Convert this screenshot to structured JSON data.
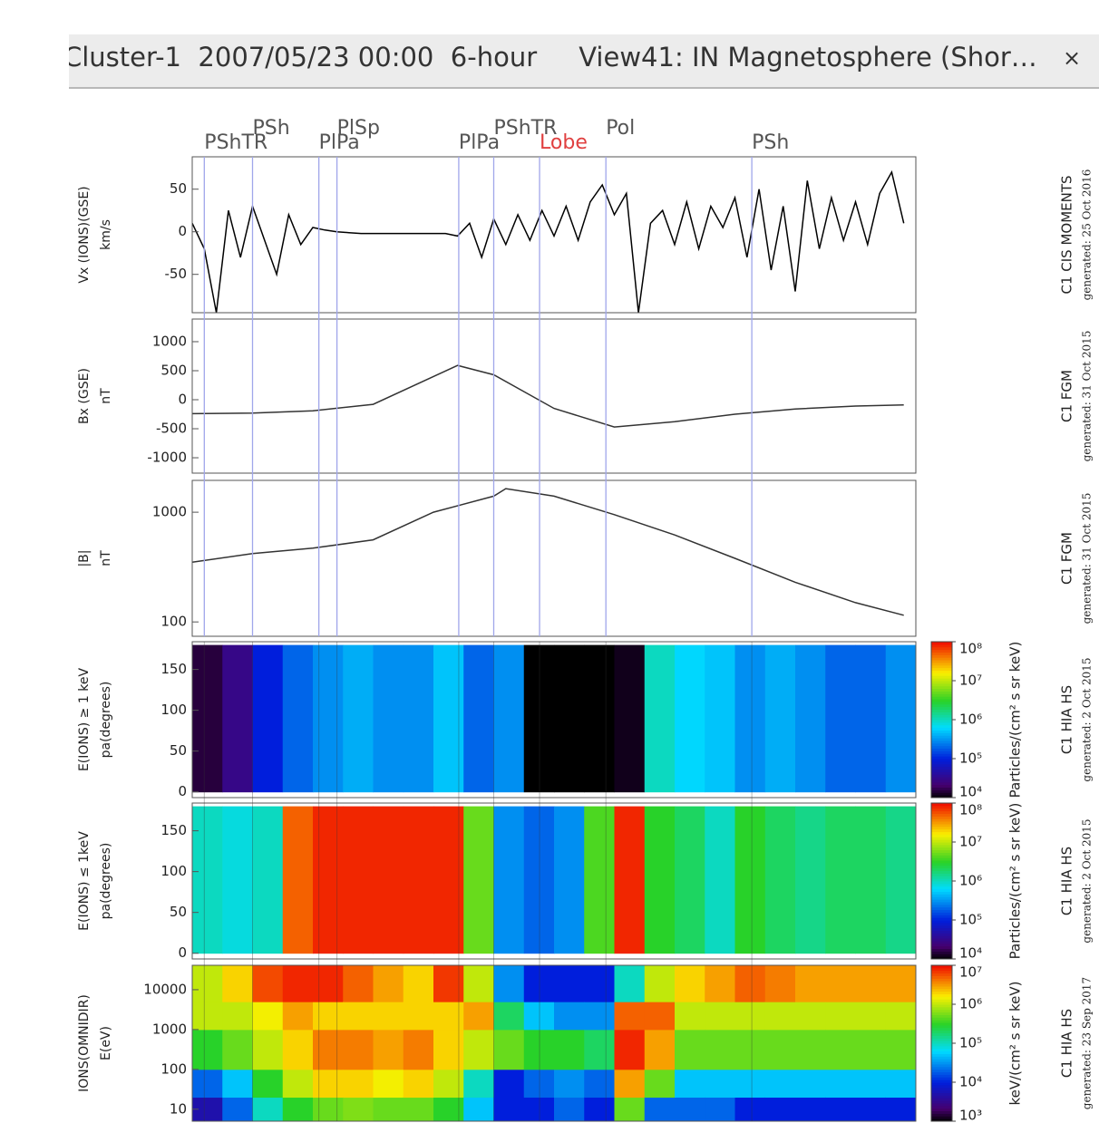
{
  "window": {
    "title": "Cluster-1  2007/05/23 00:00  6-hour     View41: IN Magnetosphere (Shor…",
    "close": "×"
  },
  "chart_data": [
    {
      "type": "line",
      "ylabel": [
        "Vx (IONS)(GSE)",
        "km/s"
      ],
      "source": "C1 CIS MOMENTS",
      "generated": "generated: 25 Oct 2016",
      "xlim": [
        0,
        6
      ],
      "ylim": [
        -95,
        88
      ],
      "yticks": [
        50,
        0,
        -50
      ],
      "log": false,
      "color": "#000000",
      "events": [
        {
          "label": "PShTR",
          "x": 0.1,
          "color": "#555555"
        },
        {
          "label": "PSh",
          "x": 0.5,
          "color": "#555555"
        },
        {
          "label": "PlPa",
          "x": 1.05,
          "color": "#555555"
        },
        {
          "label": "PlSp",
          "x": 1.2,
          "color": "#555555"
        },
        {
          "label": "PlPa",
          "x": 2.21,
          "color": "#555555"
        },
        {
          "label": "PShTR",
          "x": 2.5,
          "color": "#555555"
        },
        {
          "label": "Lobe",
          "x": 2.88,
          "color": "#e04040"
        },
        {
          "label": "Pol",
          "x": 3.43,
          "color": "#555555"
        },
        {
          "label": "PSh",
          "x": 4.64,
          "color": "#555555"
        }
      ],
      "event_line_color": "#a0a6ea",
      "x": [
        0,
        0.1,
        0.2,
        0.3,
        0.4,
        0.5,
        0.6,
        0.7,
        0.8,
        0.9,
        1.0,
        1.1,
        1.2,
        1.3,
        1.4,
        1.5,
        1.6,
        1.7,
        1.8,
        1.9,
        2.0,
        2.1,
        2.2,
        2.3,
        2.4,
        2.5,
        2.6,
        2.7,
        2.8,
        2.9,
        3.0,
        3.1,
        3.2,
        3.3,
        3.4,
        3.5,
        3.6,
        3.7,
        3.8,
        3.9,
        4.0,
        4.1,
        4.2,
        4.3,
        4.4,
        4.5,
        4.6,
        4.7,
        4.8,
        4.9,
        5.0,
        5.1,
        5.2,
        5.3,
        5.4,
        5.5,
        5.6,
        5.7,
        5.8,
        5.9
      ],
      "values": [
        10,
        -20,
        -95,
        25,
        -30,
        30,
        -10,
        -50,
        20,
        -15,
        5,
        2,
        0,
        -1,
        -2,
        -2,
        -2,
        -2,
        -2,
        -2,
        -2,
        -2,
        -5,
        10,
        -30,
        15,
        -15,
        20,
        -10,
        25,
        -5,
        30,
        -10,
        35,
        55,
        20,
        45,
        -95,
        10,
        25,
        -15,
        35,
        -20,
        30,
        5,
        40,
        -30,
        50,
        -45,
        30,
        -70,
        60,
        -20,
        40,
        -10,
        35,
        -15,
        45,
        70,
        10
      ]
    },
    {
      "type": "line",
      "ylabel": [
        "Bx (GSE)",
        "nT"
      ],
      "source": "C1 FGM",
      "generated": "generated: 31 Oct 2015",
      "xlim": [
        0,
        6
      ],
      "ylim": [
        -1265,
        1390
      ],
      "yticks": [
        1000,
        500,
        0,
        -500,
        -1000
      ],
      "log": false,
      "color": "#333333",
      "x": [
        0,
        0.5,
        1.0,
        1.5,
        2.0,
        2.2,
        2.5,
        3.0,
        3.5,
        4.0,
        4.5,
        5.0,
        5.5,
        5.9
      ],
      "values": [
        -240,
        -230,
        -190,
        -80,
        400,
        590,
        430,
        -150,
        -470,
        -380,
        -250,
        -160,
        -110,
        -90
      ]
    },
    {
      "type": "line",
      "ylabel": [
        "|B|",
        "nT"
      ],
      "source": "C1 FGM",
      "generated": "generated: 31 Oct 2015",
      "xlim": [
        0,
        6
      ],
      "ylim": [
        74,
        1950
      ],
      "yticks": [
        1000,
        100
      ],
      "log": true,
      "color": "#333333",
      "x": [
        0,
        0.5,
        1.0,
        1.5,
        2.0,
        2.5,
        2.6,
        3.0,
        3.5,
        4.0,
        4.5,
        5.0,
        5.5,
        5.9
      ],
      "values": [
        350,
        420,
        470,
        560,
        1000,
        1400,
        1640,
        1400,
        950,
        620,
        380,
        230,
        150,
        115
      ]
    },
    {
      "type": "spectrogram",
      "ylabel": [
        "E(IONS) ≥ 1 keV",
        "pa(degrees)"
      ],
      "source": "C1 HIA HS",
      "generated": "generated: 2 Oct 2015",
      "xlim": [
        0,
        6
      ],
      "ylim": [
        -7,
        184
      ],
      "yticks": [
        150,
        100,
        50,
        0
      ],
      "log": false,
      "clim": [
        10000,
        100000000
      ],
      "cticks": [
        {
          "value": 100000000,
          "label": "10⁸"
        },
        {
          "value": 10000000,
          "label": "10⁷"
        },
        {
          "value": 1000000,
          "label": "10⁶"
        },
        {
          "value": 100000,
          "label": "10⁵"
        },
        {
          "value": 10000,
          "label": "10⁴"
        }
      ],
      "colorbar_label": "Particles/(cm² s sr keV)",
      "xbins": [
        0,
        0.25,
        0.5,
        0.75,
        1.0,
        1.25,
        1.5,
        1.75,
        2.0,
        2.25,
        2.5,
        2.75,
        3.0,
        3.25,
        3.5,
        3.75,
        4.0,
        4.25,
        4.5,
        4.75,
        5.0,
        5.25,
        5.5,
        5.75,
        6.0
      ],
      "ybins": [
        0,
        180
      ],
      "values": [
        15000,
        30000,
        100000,
        200000,
        300000,
        400000,
        300000,
        300000,
        500000,
        200000,
        300000,
        10000,
        10000,
        10000,
        12000,
        1000000,
        600000,
        500000,
        300000,
        400000,
        300000,
        200000,
        200000,
        300000
      ]
    },
    {
      "type": "spectrogram",
      "ylabel": [
        "E(IONS) ≤ 1keV",
        "pa(degrees)"
      ],
      "source": "C1 HIA HS",
      "generated": "generated: 2 Oct 2015",
      "xlim": [
        0,
        6
      ],
      "ylim": [
        -7,
        184
      ],
      "yticks": [
        150,
        100,
        50,
        0
      ],
      "log": false,
      "clim": [
        10000,
        100000000
      ],
      "cticks": [
        {
          "value": 100000000,
          "label": "10⁸"
        },
        {
          "value": 10000000,
          "label": "10⁷"
        },
        {
          "value": 1000000,
          "label": "10⁶"
        },
        {
          "value": 100000,
          "label": "10⁵"
        },
        {
          "value": 10000,
          "label": "10⁴"
        }
      ],
      "colorbar_label": "Particles/(cm² s sr keV)",
      "xbins": [
        0,
        0.25,
        0.5,
        0.75,
        1.0,
        1.25,
        1.5,
        1.75,
        2.0,
        2.25,
        2.5,
        2.75,
        3.0,
        3.25,
        3.5,
        3.75,
        4.0,
        4.25,
        4.5,
        4.75,
        5.0,
        5.25,
        5.5,
        5.75,
        6.0
      ],
      "ybins": [
        0,
        180
      ],
      "values": [
        1000000,
        800000,
        1000000,
        50000000,
        80000000,
        80000000,
        80000000,
        80000000,
        80000000,
        5000000,
        300000,
        200000,
        300000,
        4000000,
        80000000,
        3000000,
        2000000,
        1000000,
        3000000,
        2000000,
        1500000,
        2000000,
        2000000,
        1500000
      ]
    },
    {
      "type": "spectrogram",
      "ylabel": [
        "IONS(OMNIDIR)",
        "E(eV)"
      ],
      "source": "C1 HIA HS",
      "generated": "generated: 23 Sep 2017",
      "xlim": [
        0,
        6
      ],
      "ylim": [
        5,
        41000
      ],
      "yticks": [
        10000,
        1000,
        100,
        10
      ],
      "log": true,
      "clim": [
        1000,
        10000000
      ],
      "cticks": [
        {
          "value": 10000000,
          "label": "10⁷"
        },
        {
          "value": 1000000,
          "label": "10⁶"
        },
        {
          "value": 100000,
          "label": "10⁵"
        },
        {
          "value": 10000,
          "label": "10⁴"
        },
        {
          "value": 1000,
          "label": "10³"
        }
      ],
      "colorbar_label": "keV/(cm² s sr keV)",
      "xbins": [
        0,
        0.25,
        0.5,
        0.75,
        1.0,
        1.25,
        1.5,
        1.75,
        2.0,
        2.25,
        2.5,
        2.75,
        3.0,
        3.25,
        3.5,
        3.75,
        4.0,
        4.25,
        4.5,
        4.75,
        5.0,
        5.25,
        5.5,
        5.75,
        6.0
      ],
      "ybins": [
        5,
        20,
        100,
        1000,
        5000,
        41000
      ],
      "values": [
        [
          5000,
          20000,
          300000,
          1000000,
          1000000
        ],
        [
          20000,
          50000,
          500000,
          1000000,
          2000000
        ],
        [
          100000,
          300000,
          1000000,
          1500000,
          6000000
        ],
        [
          300000,
          1000000,
          2000000,
          3000000,
          8000000
        ],
        [
          500000,
          2000000,
          4000000,
          2000000,
          8000000
        ],
        [
          600000,
          2000000,
          4000000,
          2000000,
          5000000
        ],
        [
          500000,
          1500000,
          3000000,
          2000000,
          3000000
        ],
        [
          500000,
          2000000,
          4000000,
          2000000,
          2000000
        ],
        [
          300000,
          1000000,
          2000000,
          2000000,
          7000000
        ],
        [
          50000,
          100000,
          1000000,
          3000000,
          1000000
        ],
        [
          10000,
          10000,
          500000,
          200000,
          30000
        ],
        [
          10000,
          20000,
          300000,
          50000,
          10000
        ],
        [
          20000,
          30000,
          300000,
          30000,
          10000
        ],
        [
          10000,
          20000,
          200000,
          30000,
          10000
        ],
        [
          500000,
          3000000,
          8000000,
          5000000,
          100000
        ],
        [
          20000,
          500000,
          3000000,
          5000000,
          1000000
        ],
        [
          20000,
          50000,
          500000,
          1000000,
          2000000
        ],
        [
          20000,
          50000,
          500000,
          1000000,
          3000000
        ],
        [
          10000,
          50000,
          500000,
          1000000,
          5000000
        ],
        [
          10000,
          50000,
          500000,
          1000000,
          4000000
        ],
        [
          10000,
          50000,
          500000,
          1000000,
          3000000
        ],
        [
          10000,
          50000,
          500000,
          1000000,
          3000000
        ],
        [
          10000,
          50000,
          500000,
          1000000,
          3000000
        ],
        [
          10000,
          50000,
          500000,
          1000000,
          3000000
        ]
      ]
    }
  ]
}
